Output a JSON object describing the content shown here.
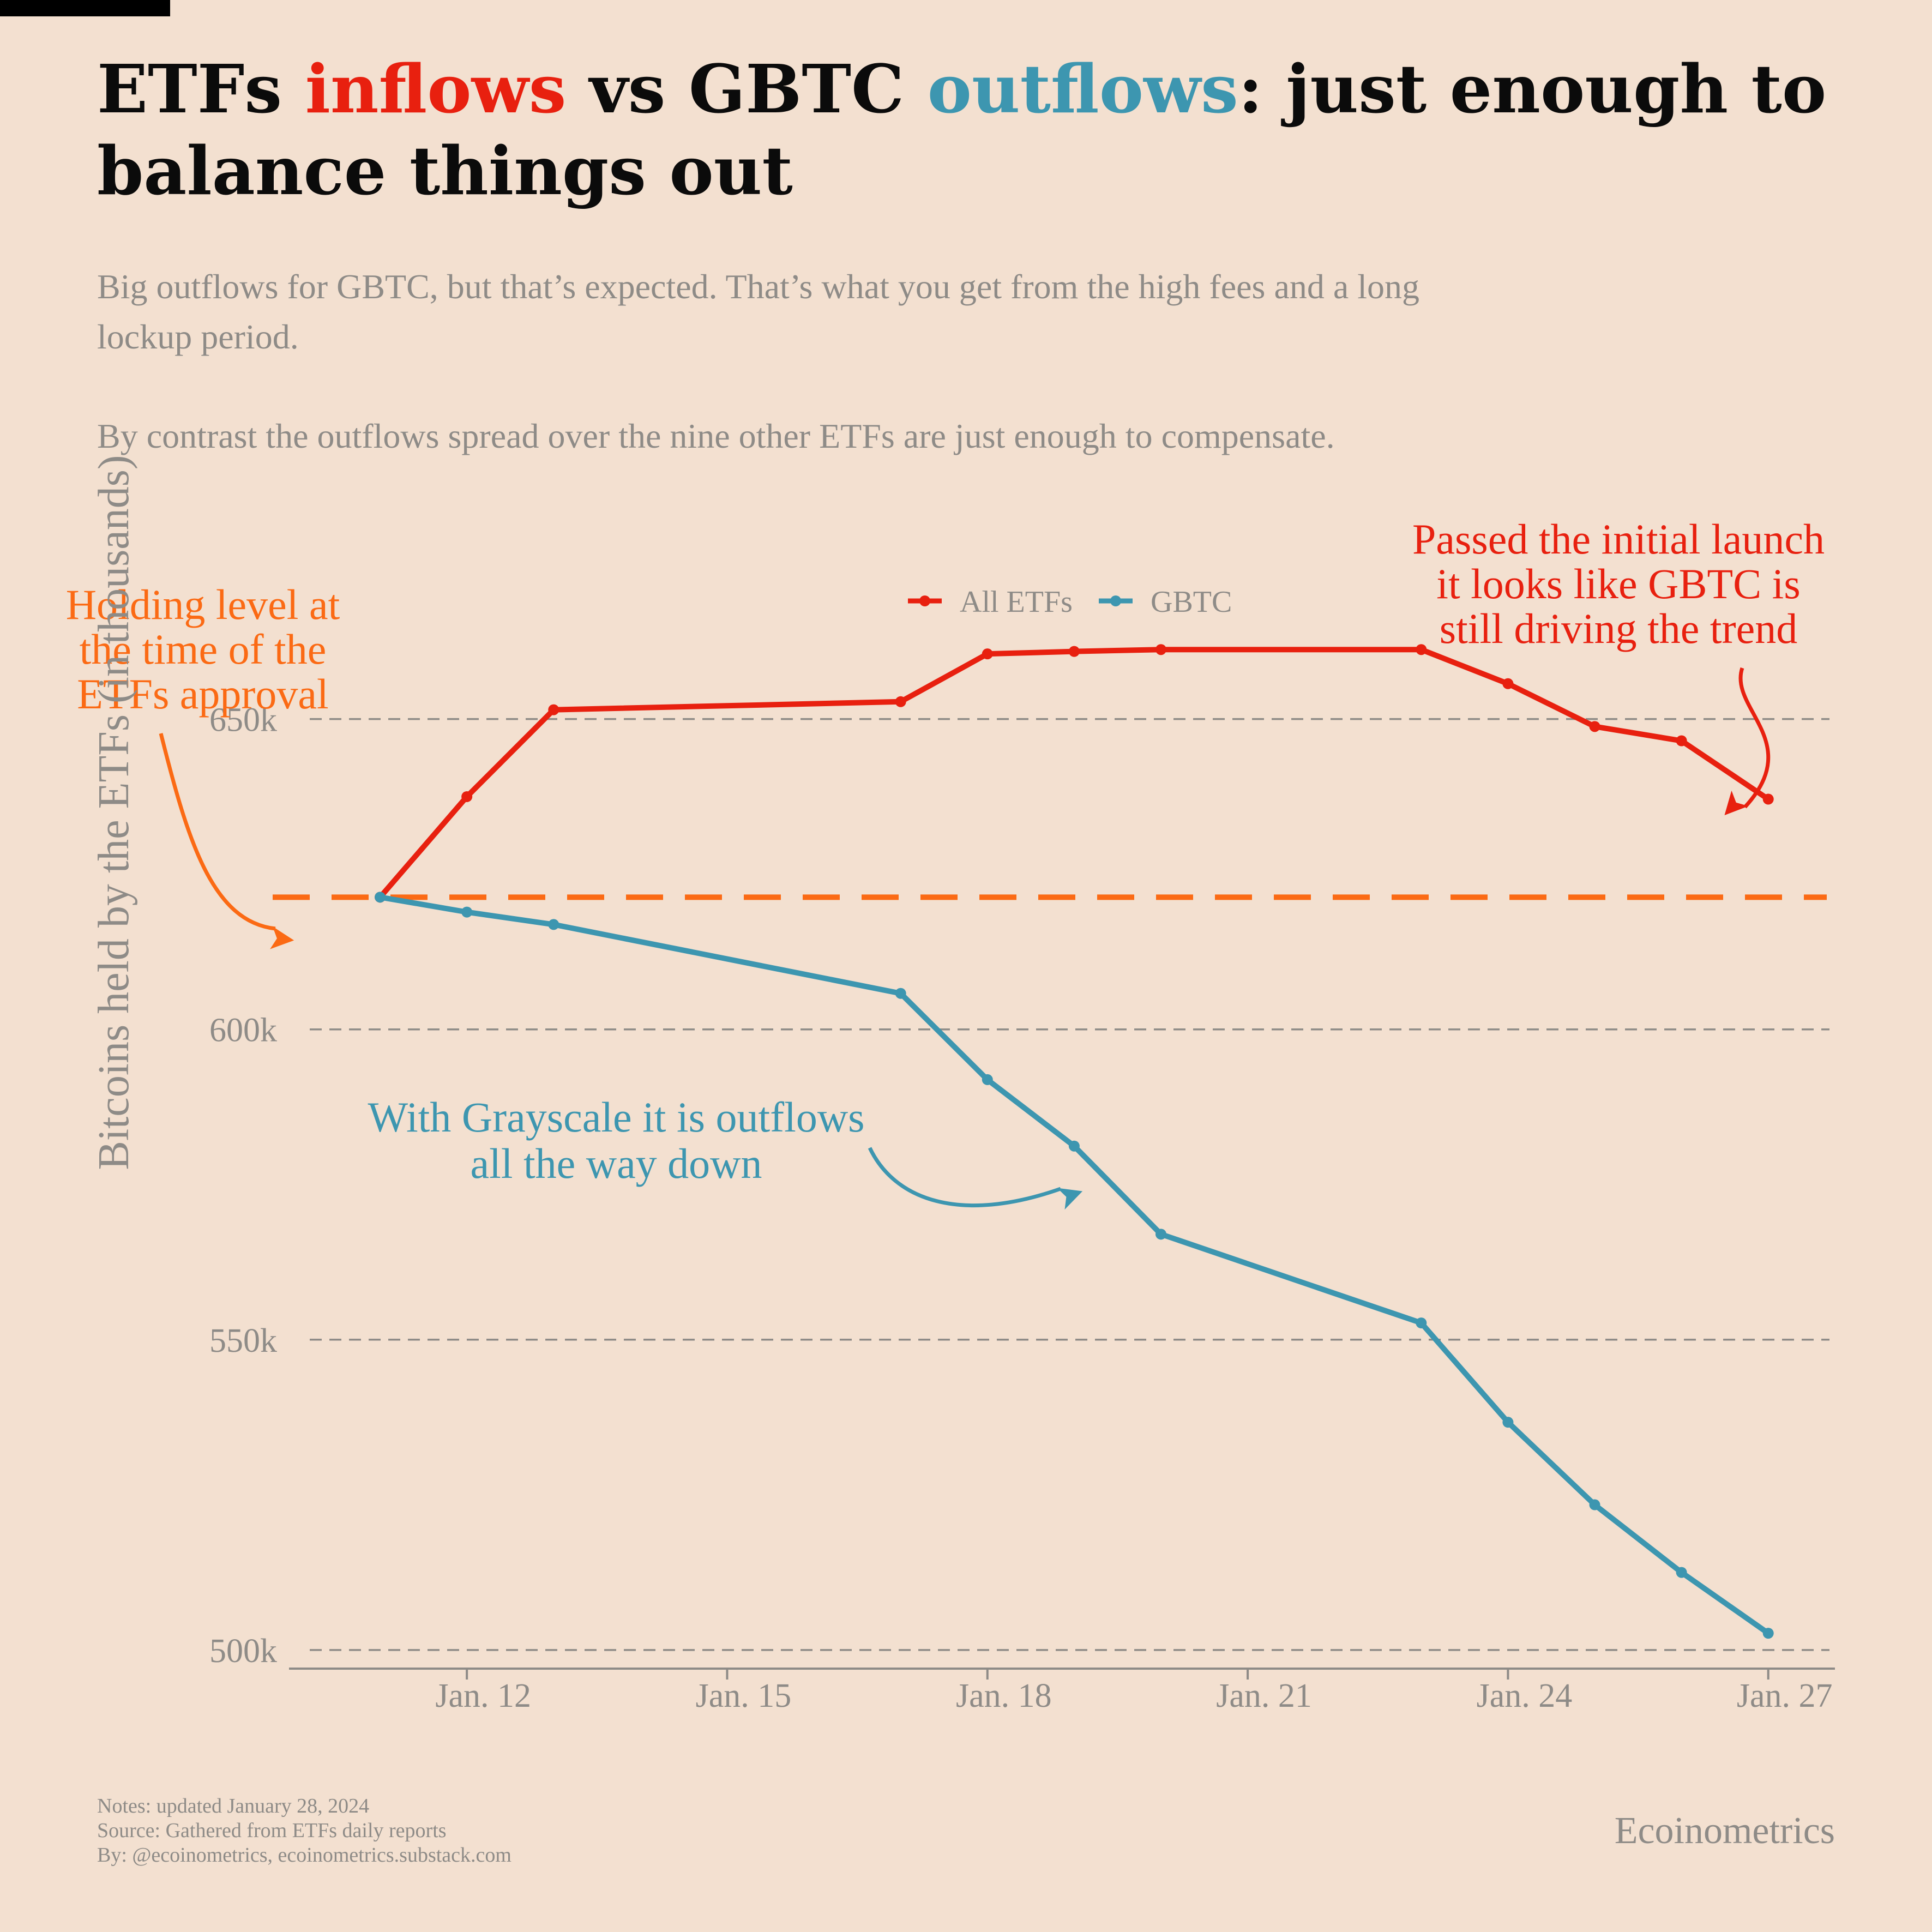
{
  "header": {
    "title_parts": [
      {
        "text": "ETFs ",
        "style": "plain"
      },
      {
        "text": "inflows",
        "style": "red"
      },
      {
        "text": " vs GBTC ",
        "style": "plain"
      },
      {
        "text": "outflows",
        "style": "blue"
      },
      {
        "text": ": just enough to balance things out",
        "style": "plain"
      }
    ],
    "subtitle_1": "Big outflows for GBTC, but that’s expected. That’s what you get from the high fees and a long lockup period.",
    "subtitle_2": "By contrast the outflows spread over the nine other ETFs are just enough to compensate."
  },
  "colors": {
    "background": "#f3e0d0",
    "all_etfs": "#e8200f",
    "gbtc": "#3d96b0",
    "reference": "#fb6a14",
    "text_grey": "#8e8b87",
    "grid": "#8e8b87"
  },
  "chart_data": {
    "type": "line",
    "title": "ETFs inflows vs GBTC outflows: just enough to balance things out",
    "xlabel": "",
    "ylabel": "Bitcoins held by the ETFs (in thousands)",
    "x_start_day": 11,
    "x_end_day": 27,
    "xlim_days": [
      9.95,
      27.8
    ],
    "ylim": [
      497000,
      678000
    ],
    "yticks": [
      500000,
      550000,
      600000,
      650000
    ],
    "ytick_labels": [
      "500k",
      "550k",
      "600k",
      "650k"
    ],
    "xticks_days": [
      12,
      15,
      18,
      21,
      24,
      27
    ],
    "xtick_labels": [
      "Jan. 12",
      "Jan. 15",
      "Jan. 18",
      "Jan. 21",
      "Jan. 24",
      "Jan. 27"
    ],
    "grid": "horizontal dashed",
    "legend_position": "top-center",
    "reference_line": {
      "value": 621300,
      "label": "Holding level at the time of the ETFs approval"
    },
    "series": [
      {
        "name": "All ETFs",
        "color": "#e8200f",
        "points": [
          [
            "2024-01-11",
            621300
          ],
          [
            "2024-01-12",
            637500
          ],
          [
            "2024-01-13",
            651500
          ],
          [
            "2024-01-17",
            652800
          ],
          [
            "2024-01-18",
            660500
          ],
          [
            "2024-01-19",
            660900
          ],
          [
            "2024-01-20",
            661200
          ],
          [
            "2024-01-23",
            661200
          ],
          [
            "2024-01-24",
            655700
          ],
          [
            "2024-01-25",
            648800
          ],
          [
            "2024-01-26",
            646500
          ],
          [
            "2024-01-27",
            637100
          ]
        ]
      },
      {
        "name": "GBTC",
        "color": "#3d96b0",
        "points": [
          [
            "2024-01-11",
            621300
          ],
          [
            "2024-01-12",
            618900
          ],
          [
            "2024-01-13",
            616900
          ],
          [
            "2024-01-17",
            605800
          ],
          [
            "2024-01-18",
            591900
          ],
          [
            "2024-01-19",
            581200
          ],
          [
            "2024-01-20",
            567000
          ],
          [
            "2024-01-23",
            552700
          ],
          [
            "2024-01-24",
            536700
          ],
          [
            "2024-01-25",
            523400
          ],
          [
            "2024-01-26",
            512500
          ],
          [
            "2024-01-27",
            502700
          ]
        ]
      }
    ],
    "annotations": [
      {
        "id": "approval",
        "color": "#fb6a14",
        "lines": [
          "Holding level at",
          "the time of the",
          "ETFs approval"
        ]
      },
      {
        "id": "gbtc",
        "color": "#3d96b0",
        "lines": [
          "With Grayscale it is outflows",
          "all the way down"
        ]
      },
      {
        "id": "trend",
        "color": "#e8200f",
        "lines": [
          "Passed the initial launch",
          "it looks like GBTC is",
          "still driving the trend"
        ]
      }
    ]
  },
  "footer": {
    "notes": "Notes: updated January 28, 2024",
    "source": "Source: Gathered from ETFs daily reports",
    "by": "By: @ecoinometrics, ecoinometrics.substack.com",
    "brand": "Ecoinometrics"
  }
}
